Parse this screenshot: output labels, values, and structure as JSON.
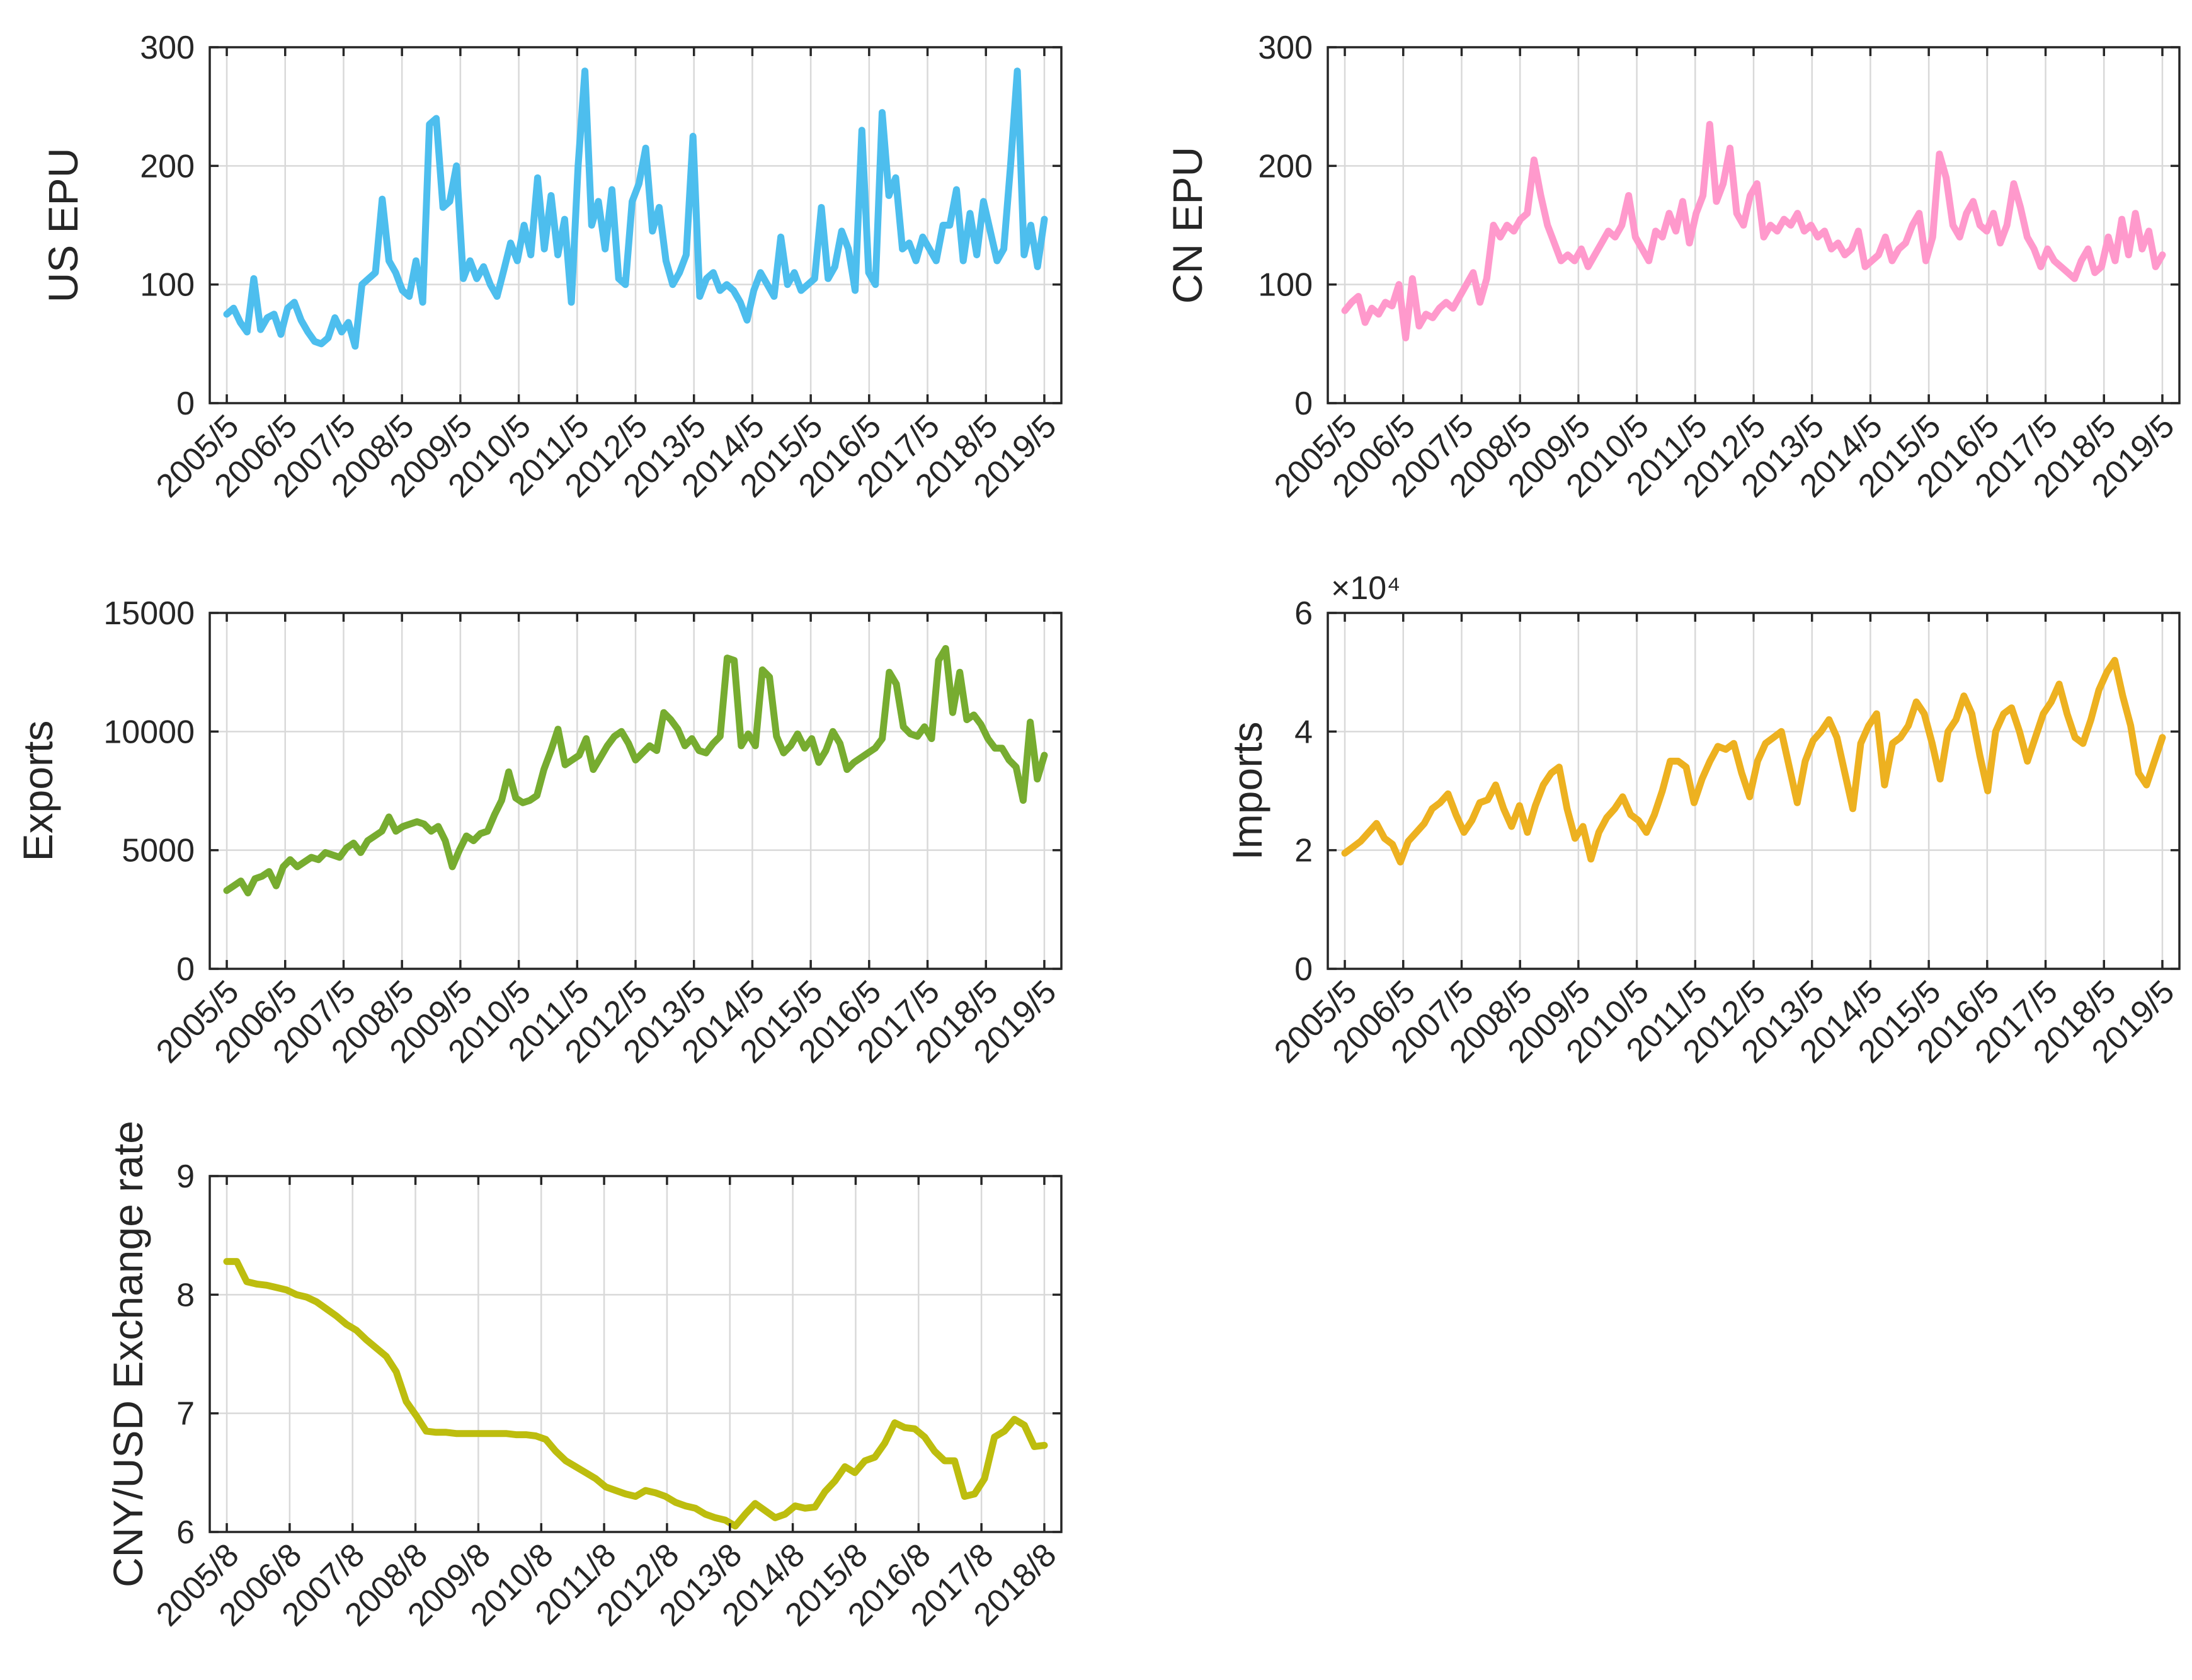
{
  "chart_data": [
    {
      "id": "us-epu",
      "type": "line",
      "ylabel": "US EPU",
      "ylim": [
        0,
        300
      ],
      "yticks": [
        "0",
        "100",
        "200",
        "300"
      ],
      "exponent_label": "",
      "xticks": [
        "2005/5",
        "2006/5",
        "2007/5",
        "2008/5",
        "2009/5",
        "2010/5",
        "2011/5",
        "2012/5",
        "2013/5",
        "2014/5",
        "2015/5",
        "2016/5",
        "2017/5",
        "2018/5",
        "2019/5"
      ],
      "color": "#4dbeee",
      "series": [
        {
          "name": "US EPU",
          "values": [
            75,
            80,
            68,
            60,
            105,
            62,
            72,
            75,
            58,
            80,
            85,
            70,
            60,
            52,
            50,
            55,
            72,
            60,
            68,
            48,
            100,
            105,
            110,
            172,
            120,
            110,
            95,
            90,
            120,
            85,
            235,
            240,
            165,
            170,
            200,
            105,
            120,
            105,
            115,
            100,
            90,
            112,
            135,
            120,
            150,
            125,
            190,
            130,
            175,
            125,
            155,
            85,
            200,
            280,
            150,
            170,
            130,
            180,
            105,
            100,
            170,
            185,
            215,
            145,
            165,
            120,
            100,
            110,
            125,
            225,
            90,
            105,
            110,
            95,
            100,
            95,
            85,
            70,
            95,
            110,
            100,
            90,
            140,
            100,
            110,
            95,
            100,
            105,
            165,
            105,
            115,
            145,
            130,
            95,
            230,
            110,
            100,
            245,
            175,
            190,
            130,
            135,
            120,
            140,
            130,
            120,
            150,
            150,
            180,
            120,
            160,
            125,
            170,
            145,
            120,
            130,
            200,
            280,
            125,
            150,
            115,
            155
          ]
        }
      ]
    },
    {
      "id": "cn-epu",
      "type": "line",
      "ylabel": "CN EPU",
      "ylim": [
        0,
        300
      ],
      "yticks": [
        "0",
        "100",
        "200",
        "300"
      ],
      "exponent_label": "",
      "xticks": [
        "2005/5",
        "2006/5",
        "2007/5",
        "2008/5",
        "2009/5",
        "2010/5",
        "2011/5",
        "2012/5",
        "2013/5",
        "2014/5",
        "2015/5",
        "2016/5",
        "2017/5",
        "2018/5",
        "2019/5"
      ],
      "color": "#ff99cc",
      "series": [
        {
          "name": "CN EPU",
          "values": [
            78,
            85,
            90,
            68,
            80,
            75,
            85,
            82,
            100,
            55,
            105,
            65,
            75,
            72,
            80,
            85,
            80,
            90,
            100,
            110,
            85,
            105,
            150,
            140,
            150,
            145,
            155,
            160,
            205,
            175,
            150,
            135,
            120,
            125,
            120,
            130,
            115,
            125,
            135,
            145,
            140,
            150,
            175,
            140,
            130,
            120,
            145,
            140,
            160,
            145,
            170,
            135,
            160,
            175,
            235,
            170,
            185,
            215,
            160,
            150,
            175,
            185,
            140,
            150,
            145,
            155,
            150,
            160,
            145,
            150,
            140,
            145,
            130,
            135,
            125,
            130,
            145,
            115,
            120,
            125,
            140,
            120,
            130,
            135,
            150,
            160,
            120,
            140,
            210,
            190,
            150,
            140,
            160,
            170,
            150,
            145,
            160,
            135,
            150,
            185,
            165,
            140,
            130,
            115,
            130,
            120,
            115,
            110,
            105,
            120,
            130,
            110,
            115,
            140,
            120,
            155,
            125,
            160,
            130,
            145,
            115,
            125
          ]
        }
      ]
    },
    {
      "id": "exports",
      "type": "line",
      "ylabel": "Exports",
      "ylim": [
        0,
        15000
      ],
      "yticks": [
        "0",
        "5000",
        "10000",
        "15000"
      ],
      "exponent_label": "",
      "xticks": [
        "2005/5",
        "2006/5",
        "2007/5",
        "2008/5",
        "2009/5",
        "2010/5",
        "2011/5",
        "2012/5",
        "2013/5",
        "2014/5",
        "2015/5",
        "2016/5",
        "2017/5",
        "2018/5",
        "2019/5"
      ],
      "color": "#77ac30",
      "series": [
        {
          "name": "Exports",
          "values": [
            3300,
            3500,
            3700,
            3200,
            3800,
            3900,
            4100,
            3500,
            4300,
            4600,
            4300,
            4500,
            4700,
            4600,
            4900,
            4800,
            4700,
            5100,
            5300,
            4900,
            5400,
            5600,
            5800,
            6400,
            5800,
            6000,
            6100,
            6200,
            6100,
            5800,
            6000,
            5400,
            4300,
            5000,
            5600,
            5400,
            5700,
            5800,
            6500,
            7100,
            8300,
            7200,
            7000,
            7100,
            7300,
            8400,
            9200,
            10100,
            8600,
            8800,
            9000,
            9700,
            8400,
            8900,
            9400,
            9800,
            10000,
            9500,
            8800,
            9100,
            9400,
            9200,
            10800,
            10500,
            10100,
            9400,
            9700,
            9200,
            9100,
            9500,
            9800,
            13100,
            13000,
            9400,
            9900,
            9400,
            12600,
            12300,
            9800,
            9100,
            9400,
            9900,
            9300,
            9700,
            8700,
            9200,
            10000,
            9500,
            8400,
            8700,
            8900,
            9100,
            9300,
            9700,
            12500,
            12000,
            10200,
            9900,
            9800,
            10200,
            9700,
            13000,
            13500,
            10800,
            12500,
            10500,
            10700,
            10300,
            9700,
            9300,
            9300,
            8800,
            8500,
            7100,
            10400,
            8000,
            9000
          ]
        }
      ]
    },
    {
      "id": "imports",
      "type": "line",
      "ylabel": "Imports",
      "ylim": [
        0,
        6
      ],
      "yticks": [
        "0",
        "2",
        "4",
        "6"
      ],
      "exponent_label": "×10⁴",
      "xticks": [
        "2005/5",
        "2006/5",
        "2007/5",
        "2008/5",
        "2009/5",
        "2010/5",
        "2011/5",
        "2012/5",
        "2013/5",
        "2014/5",
        "2015/5",
        "2016/5",
        "2017/5",
        "2018/5",
        "2019/5"
      ],
      "color": "#edb120",
      "series": [
        {
          "name": "Imports",
          "values": [
            1.95,
            2.05,
            2.15,
            2.3,
            2.45,
            2.2,
            2.1,
            1.8,
            2.15,
            2.3,
            2.45,
            2.7,
            2.8,
            2.95,
            2.6,
            2.3,
            2.5,
            2.8,
            2.85,
            3.1,
            2.7,
            2.4,
            2.75,
            2.3,
            2.75,
            3.1,
            3.3,
            3.4,
            2.7,
            2.2,
            2.4,
            1.85,
            2.3,
            2.55,
            2.7,
            2.9,
            2.6,
            2.5,
            2.3,
            2.6,
            3.0,
            3.5,
            3.5,
            3.4,
            2.8,
            3.2,
            3.5,
            3.75,
            3.7,
            3.8,
            3.3,
            2.9,
            3.5,
            3.8,
            3.9,
            4.0,
            3.4,
            2.8,
            3.5,
            3.85,
            4.0,
            4.2,
            3.9,
            3.3,
            2.7,
            3.8,
            4.1,
            4.3,
            3.1,
            3.8,
            3.9,
            4.1,
            4.5,
            4.3,
            3.8,
            3.2,
            4.0,
            4.2,
            4.6,
            4.3,
            3.6,
            3.0,
            4.0,
            4.3,
            4.4,
            4.0,
            3.5,
            3.9,
            4.3,
            4.5,
            4.8,
            4.3,
            3.9,
            3.8,
            4.2,
            4.7,
            5.0,
            5.2,
            4.6,
            4.1,
            3.3,
            3.1,
            3.5,
            3.9
          ]
        }
      ]
    },
    {
      "id": "cny-usd",
      "type": "line",
      "ylabel": "CNY/USD Exchange rate",
      "ylim": [
        6,
        9
      ],
      "yticks": [
        "6",
        "7",
        "8",
        "9"
      ],
      "exponent_label": "",
      "xticks": [
        "2005/8",
        "2006/8",
        "2007/8",
        "2008/8",
        "2009/8",
        "2010/8",
        "2011/8",
        "2012/8",
        "2013/8",
        "2014/8",
        "2015/8",
        "2016/8",
        "2017/8",
        "2018/8"
      ],
      "color": "#bdbd0e",
      "series": [
        {
          "name": "CNY/USD",
          "values": [
            8.28,
            8.28,
            8.11,
            8.09,
            8.08,
            8.06,
            8.04,
            8.0,
            7.98,
            7.94,
            7.88,
            7.82,
            7.75,
            7.7,
            7.62,
            7.55,
            7.48,
            7.35,
            7.1,
            6.98,
            6.85,
            6.84,
            6.84,
            6.83,
            6.83,
            6.83,
            6.83,
            6.83,
            6.83,
            6.82,
            6.82,
            6.81,
            6.78,
            6.68,
            6.6,
            6.55,
            6.5,
            6.45,
            6.38,
            6.35,
            6.32,
            6.3,
            6.35,
            6.33,
            6.3,
            6.25,
            6.22,
            6.2,
            6.15,
            6.12,
            6.1,
            6.05,
            6.15,
            6.24,
            6.18,
            6.12,
            6.15,
            6.22,
            6.2,
            6.21,
            6.34,
            6.43,
            6.55,
            6.5,
            6.6,
            6.63,
            6.75,
            6.92,
            6.88,
            6.87,
            6.8,
            6.68,
            6.6,
            6.6,
            6.3,
            6.32,
            6.45,
            6.8,
            6.85,
            6.95,
            6.9,
            6.72,
            6.73
          ]
        }
      ]
    }
  ]
}
